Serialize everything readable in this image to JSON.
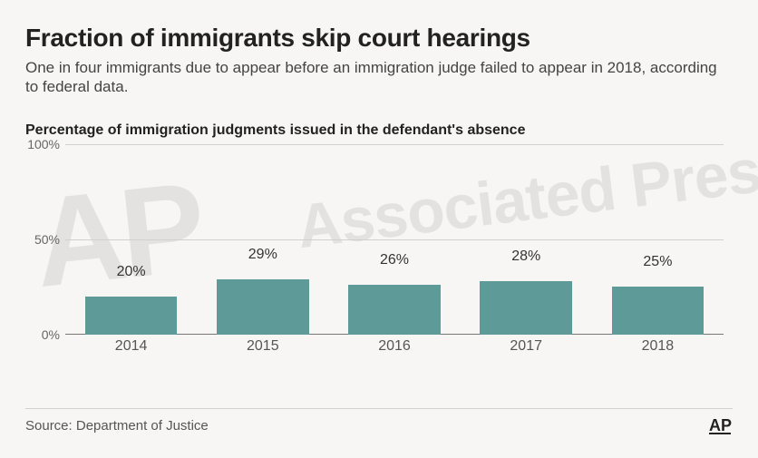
{
  "title": "Fraction of immigrants skip court hearings",
  "subtitle": "One in four immigrants due to appear before an immigration judge failed to appear in 2018, according to federal data.",
  "chart": {
    "chart_title": "Percentage of immigration judgments issued in the defendant's absence",
    "type": "bar",
    "ylim": [
      0,
      100
    ],
    "yticks": [
      0,
      50,
      100
    ],
    "ytick_labels": [
      "0%",
      "50%",
      "100%"
    ],
    "categories": [
      "2014",
      "2015",
      "2016",
      "2017",
      "2018"
    ],
    "values": [
      20,
      29,
      26,
      28,
      25
    ],
    "value_labels": [
      "20%",
      "29%",
      "26%",
      "28%",
      "25%"
    ],
    "bar_color": "#5e9a97",
    "grid_color": "#d2d0cc",
    "baseline_color": "#777777",
    "background_color": "#f7f6f4",
    "label_color": "#333333",
    "bar_width_ratio": 0.7,
    "title_fontsize": 16,
    "axis_fontsize": 14
  },
  "footer": {
    "source": "Source: Department of Justice",
    "credit": "AP"
  },
  "watermark": {
    "short": "AP",
    "long": "Associated Press"
  }
}
